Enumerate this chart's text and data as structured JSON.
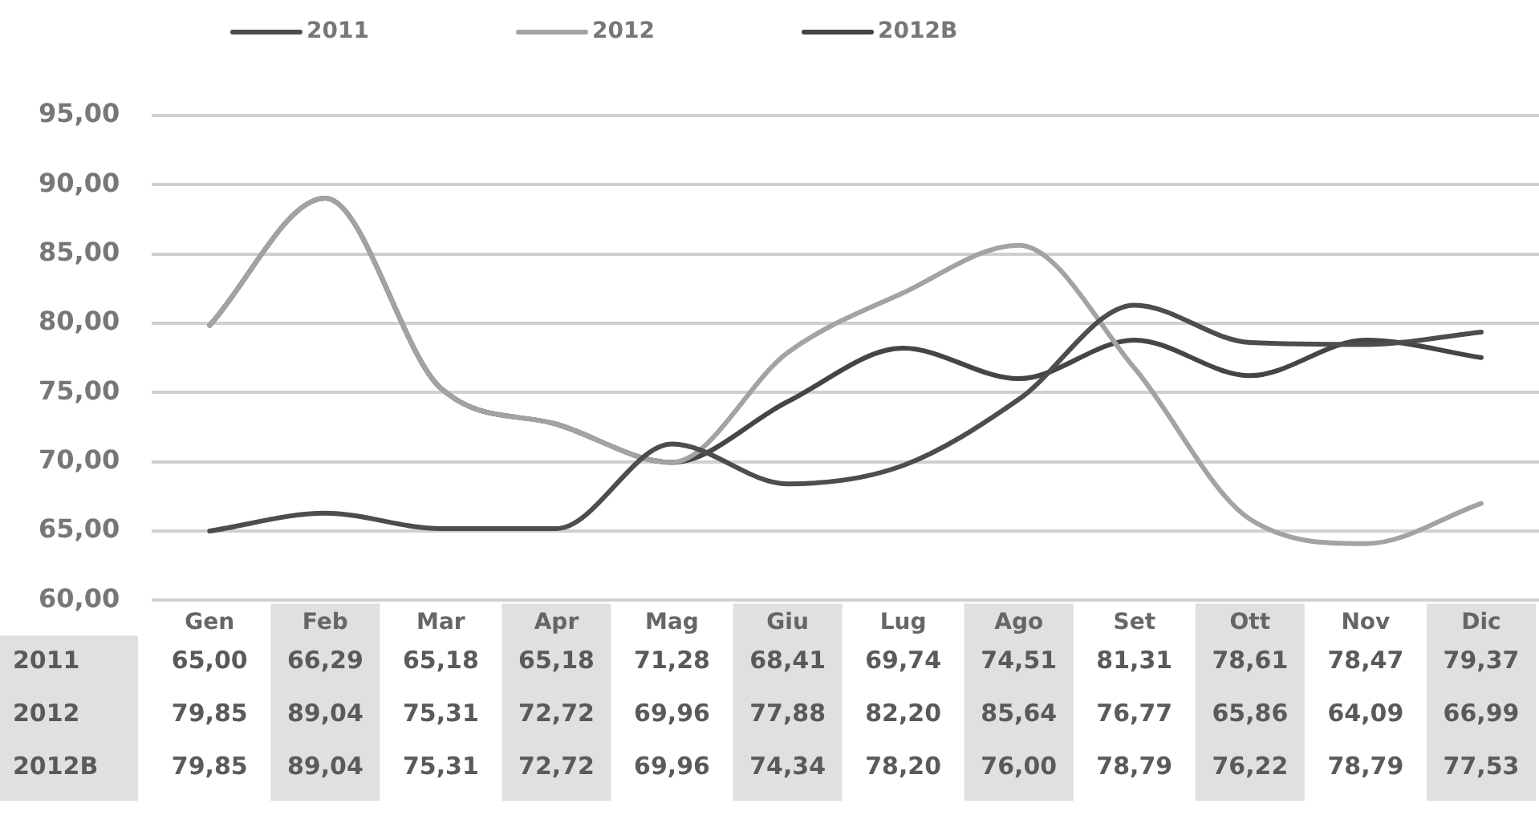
{
  "chart_data": {
    "type": "line",
    "categories": [
      "Gen",
      "Feb",
      "Mar",
      "Apr",
      "Mag",
      "Giu",
      "Lug",
      "Ago",
      "Set",
      "Ott",
      "Nov",
      "Dic"
    ],
    "series": [
      {
        "name": "2011",
        "color": "#4d4d4d",
        "values": [
          65.0,
          66.29,
          65.18,
          65.18,
          71.28,
          68.41,
          69.74,
          74.51,
          81.31,
          78.61,
          78.47,
          79.37
        ],
        "value_labels": [
          "65,00",
          "66,29",
          "65,18",
          "65,18",
          "71,28",
          "68,41",
          "69,74",
          "74,51",
          "81,31",
          "78,61",
          "78,47",
          "79,37"
        ]
      },
      {
        "name": "2012",
        "color": "#a3a3a3",
        "values": [
          79.85,
          89.04,
          75.31,
          72.72,
          69.96,
          77.88,
          82.2,
          85.64,
          76.77,
          65.86,
          64.09,
          66.99
        ],
        "value_labels": [
          "79,85",
          "89,04",
          "75,31",
          "72,72",
          "69,96",
          "77,88",
          "82,20",
          "85,64",
          "76,77",
          "65,86",
          "64,09",
          "66,99"
        ]
      },
      {
        "name": "2012B",
        "color": "#454545",
        "values": [
          79.85,
          89.04,
          75.31,
          72.72,
          69.96,
          74.34,
          78.2,
          76.0,
          78.79,
          76.22,
          78.79,
          77.53
        ],
        "value_labels": [
          "79,85",
          "89,04",
          "75,31",
          "72,72",
          "69,96",
          "74,34",
          "78,20",
          "76,00",
          "78,79",
          "76,22",
          "78,79",
          "77,53"
        ]
      }
    ],
    "ylim": [
      60,
      95
    ],
    "yticks": [
      {
        "value": 60,
        "label": "60,00"
      },
      {
        "value": 65,
        "label": "65,00"
      },
      {
        "value": 70,
        "label": "70,00"
      },
      {
        "value": 75,
        "label": "75,00"
      },
      {
        "value": 80,
        "label": "80,00"
      },
      {
        "value": 85,
        "label": "85,00"
      },
      {
        "value": 90,
        "label": "90,00"
      },
      {
        "value": 95,
        "label": "95,00"
      }
    ],
    "grid": "y",
    "legend": "top",
    "marker": "none",
    "line_style": "solid"
  }
}
